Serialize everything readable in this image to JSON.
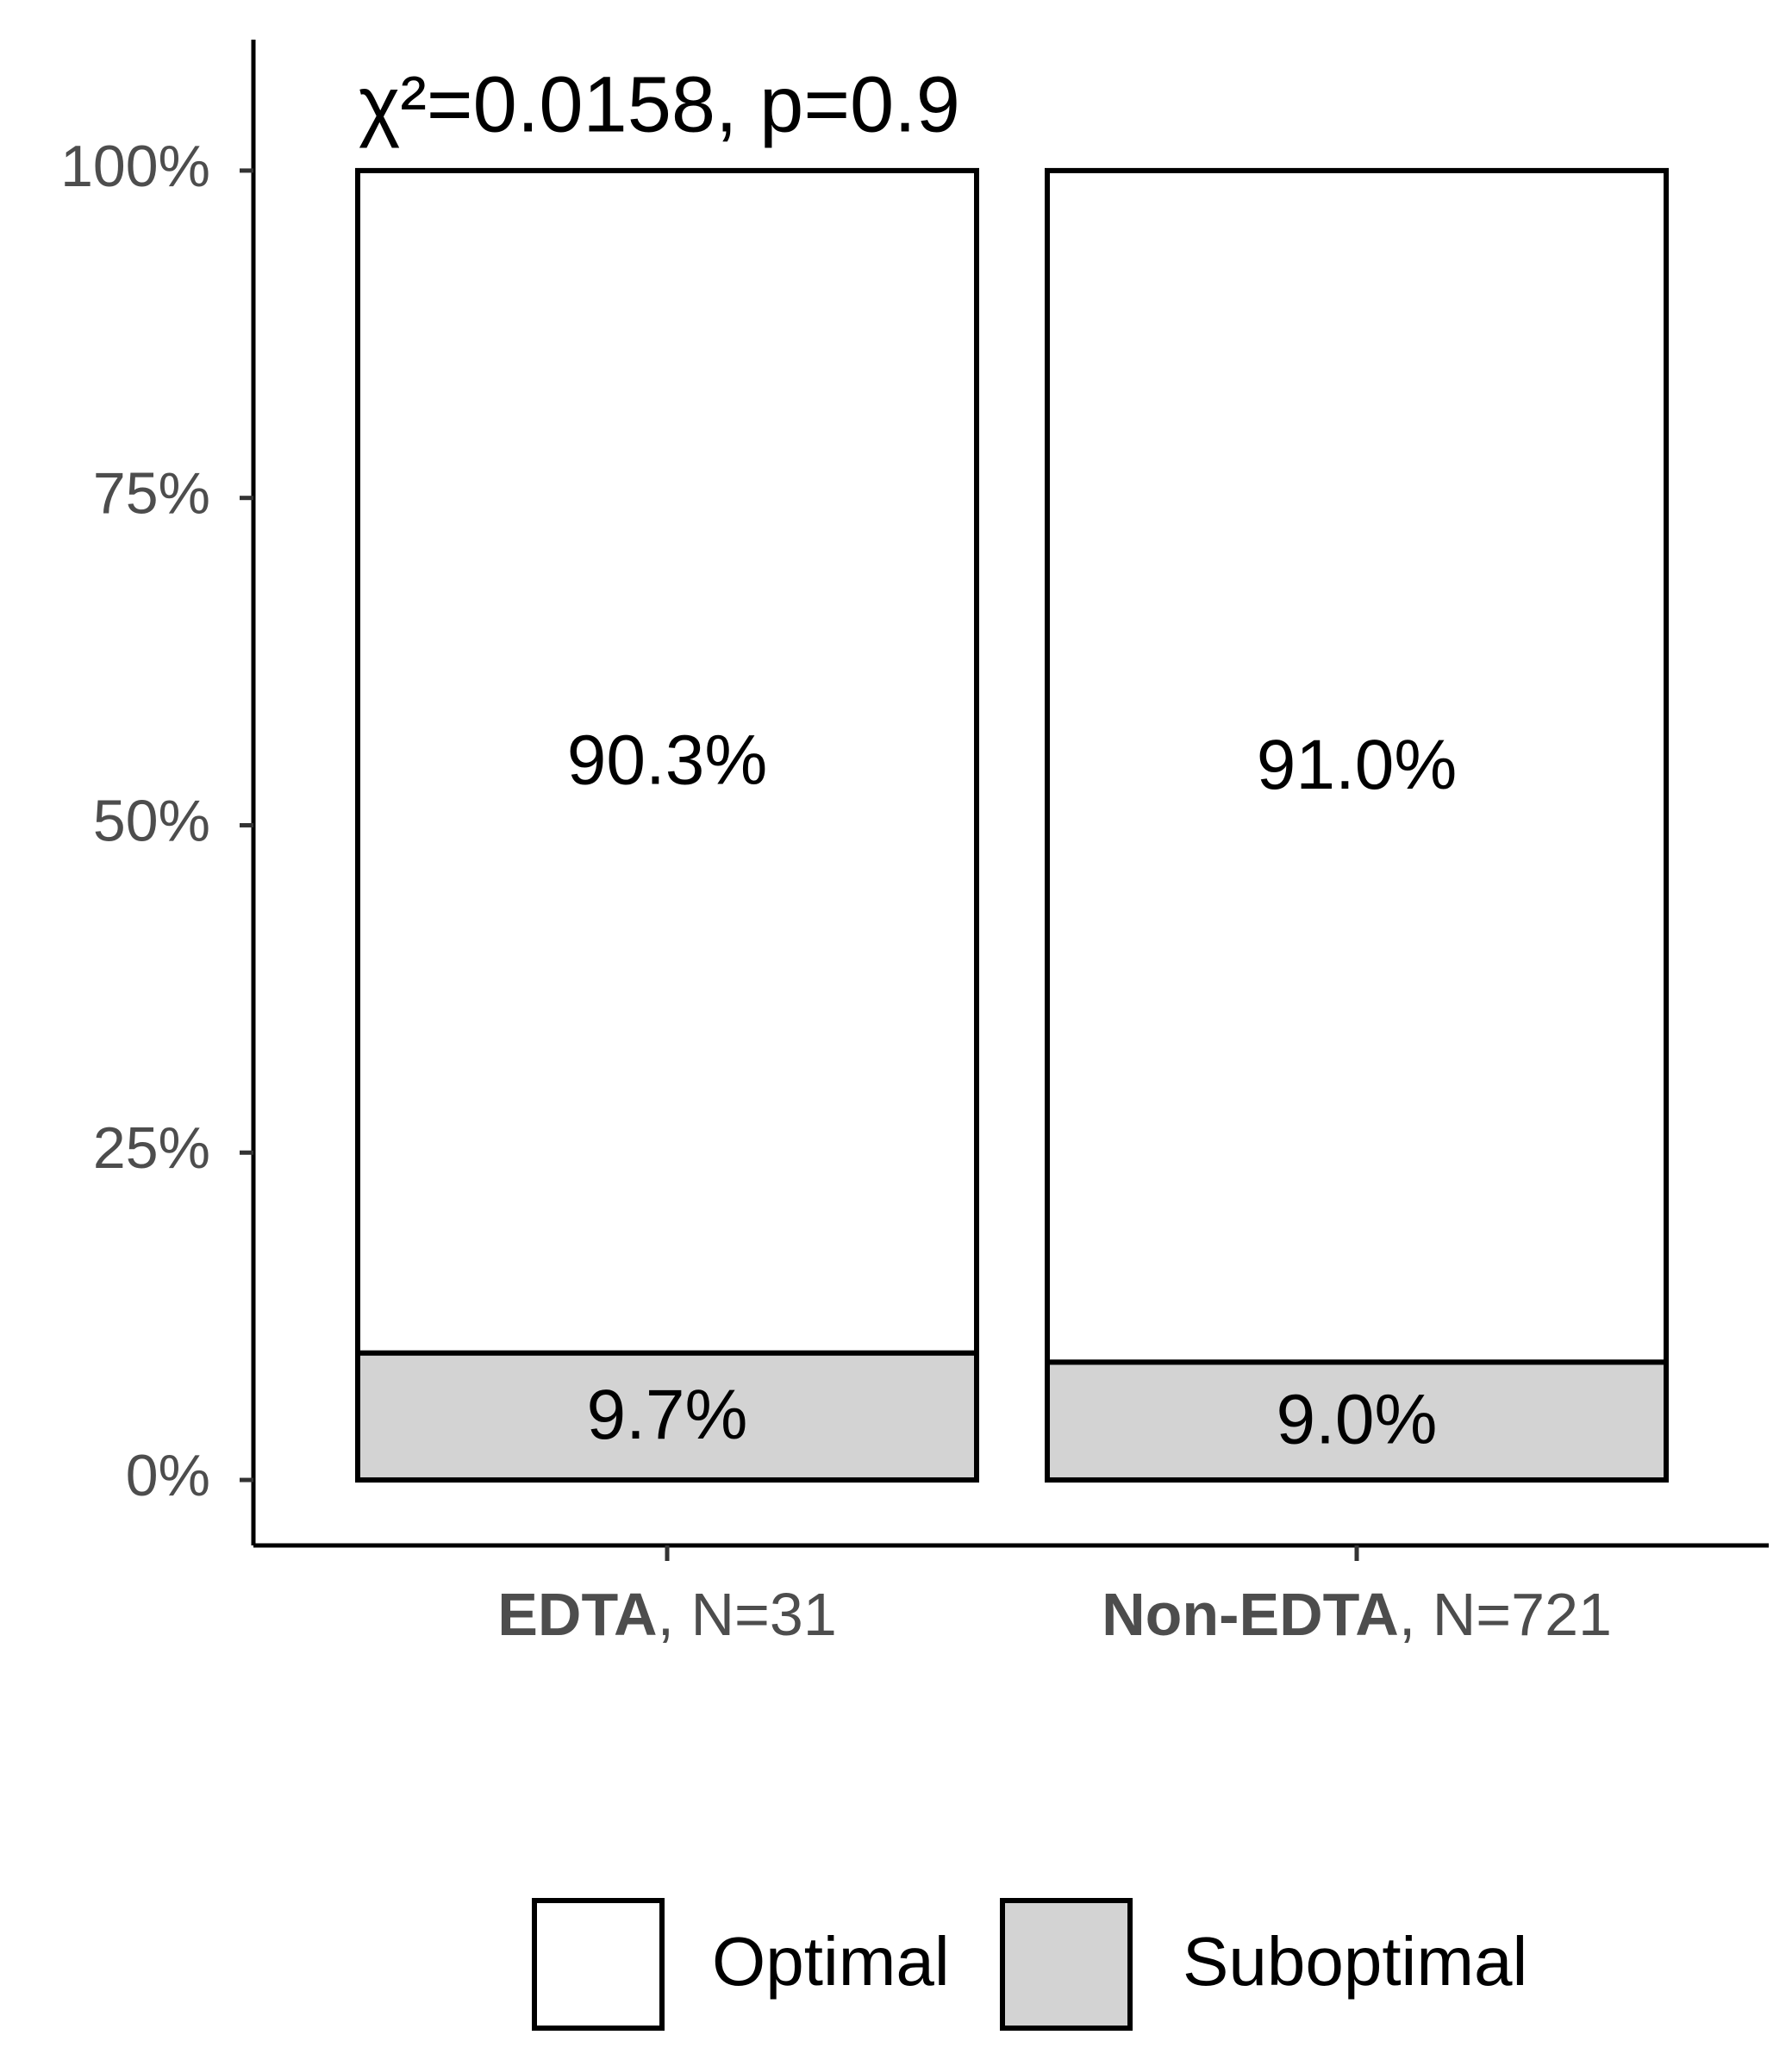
{
  "chart_data": {
    "type": "stacked-bar",
    "title": "χ²=0.0158, p=0.9",
    "categories": [
      "EDTA",
      "Non-EDTA"
    ],
    "category_counts": [
      ", N=31",
      ", N=721"
    ],
    "series": [
      {
        "name": "Optimal",
        "color": "#ffffff",
        "values": [
          90.3,
          91.0
        ],
        "value_labels": [
          "90.3%",
          "91.0%"
        ]
      },
      {
        "name": "Suboptimal",
        "color": "#d3d3d3",
        "values": [
          9.7,
          9.0
        ],
        "value_labels": [
          "9.7%",
          "9.0%"
        ]
      }
    ],
    "ylim": [
      -5,
      110
    ],
    "yticks": [
      {
        "value": 0,
        "label": "0%"
      },
      {
        "value": 25,
        "label": "25%"
      },
      {
        "value": 50,
        "label": "50%"
      },
      {
        "value": 75,
        "label": "75%"
      },
      {
        "value": 100,
        "label": "100%"
      }
    ],
    "legend": "bottom"
  }
}
